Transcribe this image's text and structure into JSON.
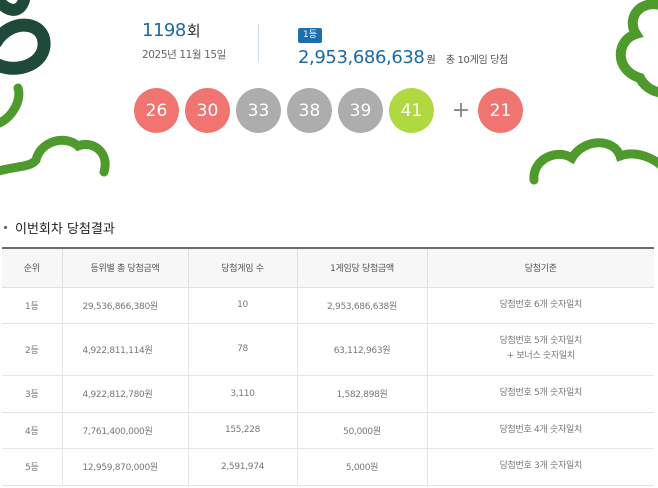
{
  "draw": {
    "round_number": "1198",
    "round_suffix": "회",
    "date": "2025년 11월 15일",
    "rank_badge": "1등",
    "first_prize_amount": "2,953,686,638",
    "first_prize_unit": "원",
    "winners_text": "총 10게임 당첨"
  },
  "balls": [
    {
      "number": "26",
      "color": "red"
    },
    {
      "number": "30",
      "color": "red"
    },
    {
      "number": "33",
      "color": "gray"
    },
    {
      "number": "38",
      "color": "gray"
    },
    {
      "number": "39",
      "color": "gray"
    },
    {
      "number": "41",
      "color": "green"
    }
  ],
  "plus_sign": "+",
  "bonus_ball": {
    "number": "21",
    "color": "red"
  },
  "colors": {
    "ball_red": "#f07470",
    "ball_gray": "#adadad",
    "ball_green": "#b0d840",
    "accent_blue": "#1a6aa6",
    "deco_green": "#4e9a2c",
    "deco_dark": "#1f4a3a"
  },
  "section_title": "이번회차 당첨결과",
  "table": {
    "headers": [
      "순위",
      "등위별 총 당첨금액",
      "당첨게임 수",
      "1게임당 당첨금액",
      "당첨기준"
    ],
    "rows": [
      {
        "rank": "1등",
        "total": "29,536,866,380원",
        "games": "10",
        "per_game": "2,953,686,638원",
        "criteria": [
          "당첨번호 6개 숫자일치"
        ]
      },
      {
        "rank": "2등",
        "total": "4,922,811,114원",
        "games": "78",
        "per_game": "63,112,963원",
        "criteria": [
          "당첨번호 5개 숫자일치",
          "+ 보너스 숫자일치"
        ]
      },
      {
        "rank": "3등",
        "total": "4,922,812,780원",
        "games": "3,110",
        "per_game": "1,582,898원",
        "criteria": [
          "당첨번호 5개 숫자일치"
        ]
      },
      {
        "rank": "4등",
        "total": "7,761,400,000원",
        "games": "155,228",
        "per_game": "50,000원",
        "criteria": [
          "당첨번호 4개 숫자일치"
        ]
      },
      {
        "rank": "5등",
        "total": "12,959,870,000원",
        "games": "2,591,974",
        "per_game": "5,000원",
        "criteria": [
          "당첨번호 3개 숫자일치"
        ]
      }
    ]
  }
}
